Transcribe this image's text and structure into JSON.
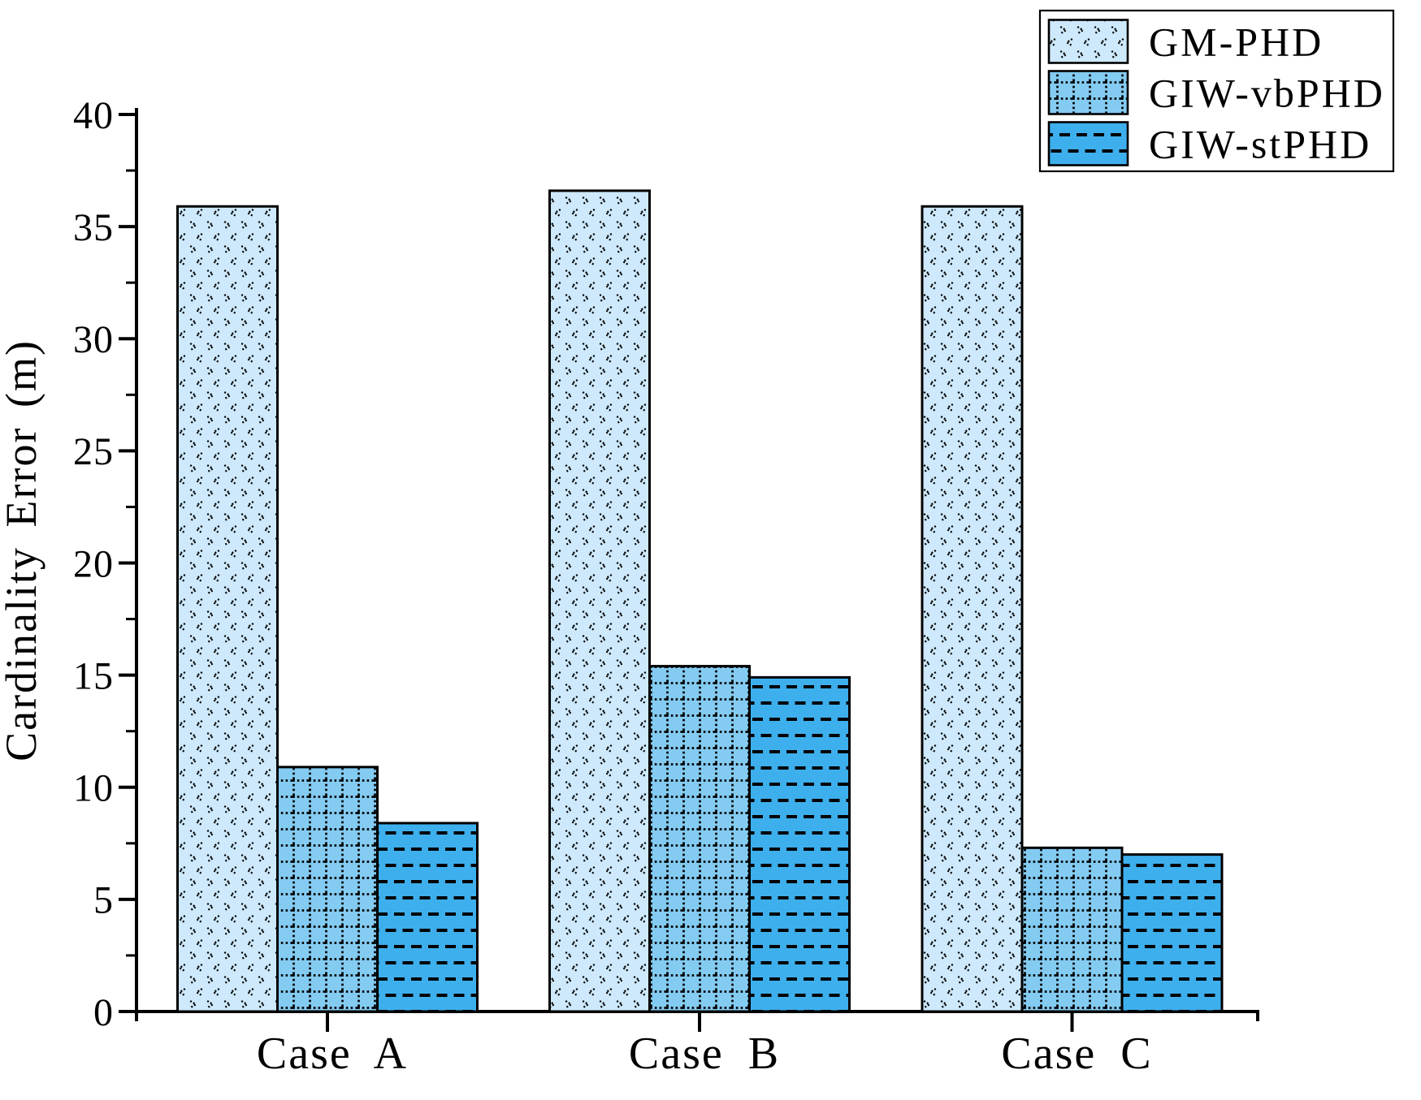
{
  "chart_data": {
    "type": "bar",
    "title": "",
    "categories": [
      "Case A",
      "Case B",
      "Case C"
    ],
    "series": [
      {
        "name": "GM-PHD",
        "values": [
          35.9,
          36.6,
          35.9
        ],
        "fill": "#cde9fb",
        "hatch": "chevron-dots"
      },
      {
        "name": "GIW-vbPHD",
        "values": [
          10.9,
          15.4,
          7.3
        ],
        "fill": "#84cbf1",
        "hatch": "dotted-grid"
      },
      {
        "name": "GIW-stPHD",
        "values": [
          8.4,
          14.9,
          7.0
        ],
        "fill": "#3eafed",
        "hatch": "dashed-rows"
      }
    ],
    "xlabel": "",
    "ylabel": "Cardinality Error (m)",
    "ylim": [
      0,
      40
    ],
    "yticks": [
      0,
      5,
      10,
      15,
      20,
      25,
      30,
      35,
      40
    ],
    "yminor_step": 2.5,
    "grid": false,
    "legend_position": "top-right",
    "colors": {
      "axis": "#000000",
      "hatch": "#000000",
      "bar_edge": "#000000",
      "legend_border": "#000000",
      "background": "#ffffff"
    }
  }
}
